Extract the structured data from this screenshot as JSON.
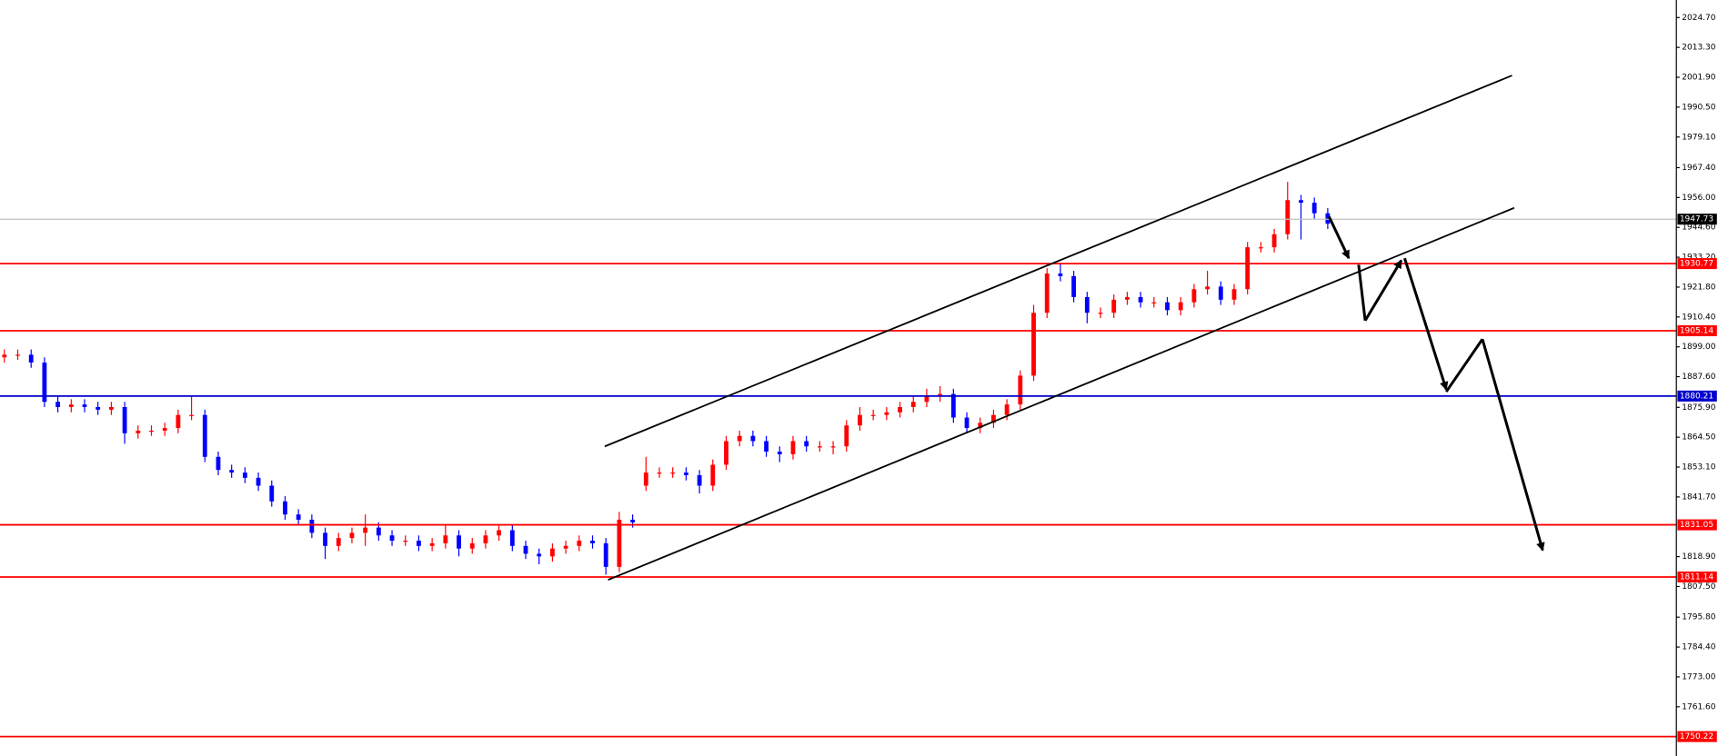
{
  "chart_data": {
    "type": "candlestick",
    "open": [
      1895,
      1896,
      1896,
      1893,
      1878,
      1876,
      1877,
      1876,
      1875,
      1876,
      1866,
      1867,
      1867,
      1868,
      1873,
      1873,
      1857,
      1852,
      1851,
      1849,
      1846,
      1840,
      1835,
      1833,
      1828,
      1823,
      1826,
      1828,
      1830,
      1827,
      1825,
      1825,
      1823,
      1824,
      1827,
      1822,
      1824,
      1827,
      1829,
      1823,
      1820,
      1819,
      1822,
      1823,
      1825,
      1824,
      1815,
      1833,
      1846,
      1851,
      1851,
      1851,
      1850,
      1846,
      1854,
      1863,
      1865,
      1863,
      1859,
      1858,
      1863,
      1861,
      1861,
      1861,
      1869,
      1873,
      1873,
      1874,
      1876,
      1878,
      1880,
      1881,
      1872,
      1868,
      1870,
      1873,
      1877,
      1888,
      1912,
      1927,
      1926,
      1918,
      1912,
      1912,
      1917,
      1918,
      1916,
      1916,
      1913,
      1916,
      1921,
      1922,
      1917,
      1921,
      1937,
      1937,
      1942,
      1955,
      1954,
      1950
    ],
    "high": [
      1898,
      1898,
      1898,
      1895,
      1880,
      1879,
      1879,
      1878,
      1878,
      1878,
      1869,
      1869,
      1870,
      1875,
      1880,
      1875,
      1859,
      1854,
      1853,
      1851,
      1848,
      1842,
      1837,
      1835,
      1830,
      1828,
      1830,
      1835,
      1832,
      1829,
      1827,
      1827,
      1826,
      1831,
      1829,
      1826,
      1829,
      1831,
      1831,
      1825,
      1822,
      1824,
      1825,
      1827,
      1827,
      1826,
      1836,
      1835,
      1857,
      1853,
      1853,
      1853,
      1852,
      1856,
      1865,
      1867,
      1867,
      1865,
      1861,
      1865,
      1865,
      1863,
      1863,
      1871,
      1876,
      1875,
      1876,
      1878,
      1880,
      1883,
      1884,
      1883,
      1874,
      1872,
      1875,
      1879,
      1890,
      1915,
      1929,
      1931,
      1928,
      1920,
      1914,
      1919,
      1920,
      1920,
      1918,
      1918,
      1918,
      1923,
      1928,
      1924,
      1923,
      1939,
      1939,
      1944,
      1962,
      1957,
      1956,
      1952
    ],
    "low": [
      1893,
      1894,
      1891,
      1876,
      1874,
      1874,
      1874,
      1873,
      1873,
      1862,
      1864,
      1865,
      1865,
      1866,
      1871,
      1855,
      1850,
      1849,
      1847,
      1844,
      1838,
      1833,
      1831,
      1826,
      1818,
      1821,
      1824,
      1823,
      1825,
      1823,
      1823,
      1821,
      1821,
      1822,
      1819,
      1820,
      1822,
      1825,
      1821,
      1818,
      1816,
      1817,
      1820,
      1821,
      1822,
      1812,
      1813,
      1830,
      1844,
      1849,
      1849,
      1848,
      1843,
      1844,
      1852,
      1861,
      1861,
      1857,
      1855,
      1856,
      1859,
      1859,
      1858,
      1859,
      1867,
      1871,
      1871,
      1872,
      1874,
      1876,
      1878,
      1870,
      1866,
      1866,
      1868,
      1871,
      1875,
      1886,
      1910,
      1924,
      1916,
      1908,
      1910,
      1910,
      1915,
      1914,
      1914,
      1911,
      1911,
      1914,
      1919,
      1915,
      1915,
      1919,
      1935,
      1935,
      1940,
      1940,
      1948,
      1944
    ],
    "close": [
      1896,
      1896,
      1893,
      1878,
      1876,
      1877,
      1876,
      1875,
      1876,
      1866,
      1867,
      1867,
      1868,
      1873,
      1873,
      1857,
      1852,
      1851,
      1849,
      1846,
      1840,
      1835,
      1833,
      1828,
      1823,
      1826,
      1828,
      1830,
      1827,
      1825,
      1825,
      1823,
      1824,
      1827,
      1822,
      1824,
      1827,
      1829,
      1823,
      1820,
      1819,
      1822,
      1823,
      1825,
      1824,
      1815,
      1833,
      1832,
      1851,
      1851,
      1851,
      1850,
      1846,
      1854,
      1863,
      1865,
      1863,
      1859,
      1858,
      1863,
      1861,
      1861,
      1861,
      1869,
      1873,
      1873,
      1874,
      1876,
      1878,
      1880,
      1881,
      1872,
      1868,
      1870,
      1873,
      1877,
      1888,
      1912,
      1927,
      1926,
      1918,
      1912,
      1912,
      1917,
      1918,
      1916,
      1916,
      1913,
      1916,
      1921,
      1922,
      1917,
      1921,
      1937,
      1937,
      1942,
      1955,
      1954,
      1950,
      1946
    ],
    "up_color": "#ff0000",
    "down_color": "#0000ff",
    "ylim": [
      1742.8,
      2031.4
    ],
    "yticks": [
      {
        "value": 2024.7,
        "label": "2024.70"
      },
      {
        "value": 2013.3,
        "label": "2013.30"
      },
      {
        "value": 2001.9,
        "label": "2001.90"
      },
      {
        "value": 1990.5,
        "label": "1990.50"
      },
      {
        "value": 1979.1,
        "label": "1979.10"
      },
      {
        "value": 1967.4,
        "label": "1967.40"
      },
      {
        "value": 1956,
        "label": "1956.00"
      },
      {
        "value": 1944.6,
        "label": "1944.60"
      },
      {
        "value": 1933.2,
        "label": "1933.20"
      },
      {
        "value": 1921.8,
        "label": "1921.80"
      },
      {
        "value": 1910.4,
        "label": "1910.40"
      },
      {
        "value": 1899,
        "label": "1899.00"
      },
      {
        "value": 1887.6,
        "label": "1887.60"
      },
      {
        "value": 1875.9,
        "label": "1875.90"
      },
      {
        "value": 1864.5,
        "label": "1864.50"
      },
      {
        "value": 1853.1,
        "label": "1853.10"
      },
      {
        "value": 1841.7,
        "label": "1841.70"
      },
      {
        "value": 1818.9,
        "label": "1818.90"
      },
      {
        "value": 1807.5,
        "label": "1807.50"
      },
      {
        "value": 1795.8,
        "label": "1795.80"
      },
      {
        "value": 1784.4,
        "label": "1784.40"
      },
      {
        "value": 1773,
        "label": "1773.00"
      },
      {
        "value": 1761.6,
        "label": "1761.60"
      }
    ],
    "current_price": 1947.73,
    "levels": [
      {
        "value": 1930.77,
        "color": "#ff0000"
      },
      {
        "value": 1905.14,
        "color": "#ff0000"
      },
      {
        "value": 1880.21,
        "color": "#0000cc"
      },
      {
        "value": 1831.05,
        "color": "#ff0000"
      },
      {
        "value": 1811.14,
        "color": "#ff0000"
      },
      {
        "value": 1750.22,
        "color": "#ff0000"
      }
    ]
  }
}
